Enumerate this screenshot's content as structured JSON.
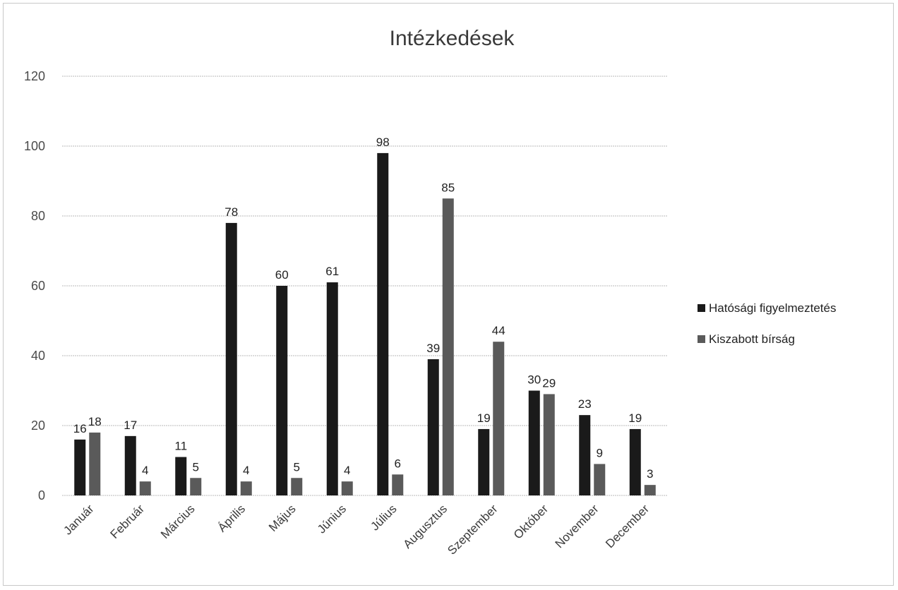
{
  "chart_data": {
    "type": "bar",
    "title": "Intézkedések",
    "xlabel": "",
    "ylabel": "",
    "ylim": [
      0,
      120
    ],
    "yticks": [
      0,
      20,
      40,
      60,
      80,
      100,
      120
    ],
    "grid": true,
    "legend_position": "right",
    "categories": [
      "Január",
      "Február",
      "Március",
      "Április",
      "Május",
      "Június",
      "Július",
      "Augusztus",
      "Szeptember",
      "Október",
      "November",
      "December"
    ],
    "series": [
      {
        "name": "Hatósági figyelmeztetés",
        "color": "#1a1a1a",
        "values": [
          16,
          17,
          11,
          78,
          60,
          61,
          98,
          39,
          19,
          30,
          23,
          19
        ]
      },
      {
        "name": "Kiszabott bírság",
        "color": "#5a5a5a",
        "values": [
          18,
          4,
          5,
          4,
          5,
          4,
          6,
          85,
          44,
          29,
          9,
          3
        ]
      }
    ]
  }
}
